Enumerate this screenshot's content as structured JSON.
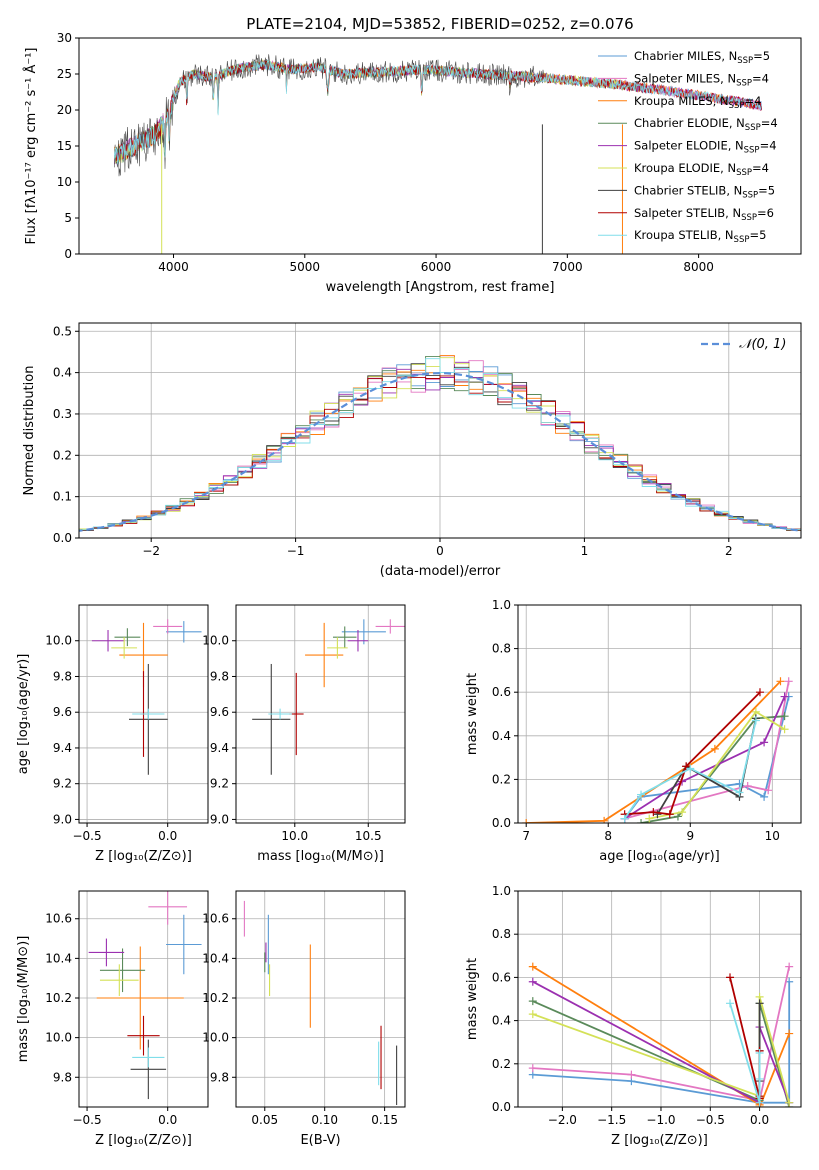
{
  "chart_data": [
    {
      "id": "spectrum",
      "type": "line",
      "title": "PLATE=2104, MJD=53852, FIBERID=0252, z=0.076",
      "xlabel": "wavelength [Angstrom, rest frame]",
      "ylabel": "Flux [fλ10⁻¹⁷ erg cm⁻² s⁻¹ Å⁻¹]",
      "xlim": [
        3280,
        8780
      ],
      "ylim": [
        0,
        30
      ],
      "xticks": [
        4000,
        5000,
        6000,
        7000,
        8000
      ],
      "yticks": [
        0,
        5,
        10,
        15,
        20,
        25,
        30
      ],
      "legend_position": "upper-right",
      "continuum": {
        "x": [
          3550,
          3650,
          3750,
          3850,
          3950,
          4050,
          4150,
          4300,
          4500,
          4700,
          4900,
          5100,
          5300,
          5600,
          5900,
          6200,
          6500,
          6800,
          7100,
          7400,
          7700,
          8000,
          8300,
          8500
        ],
        "y": [
          13.5,
          14.5,
          15.5,
          16.5,
          19.0,
          24.0,
          25.0,
          24.5,
          25.8,
          26.3,
          25.6,
          26.0,
          25.0,
          25.3,
          25.6,
          25.2,
          24.8,
          24.5,
          24.0,
          23.5,
          22.8,
          22.0,
          21.2,
          20.5
        ]
      },
      "series": [
        {
          "name": "Chabrier MILES, N_SSP=5",
          "legend_main": "Chabrier MILES, N",
          "legend_sub": "SSP",
          "legend_tail": "=5",
          "color": "#5b9bd5"
        },
        {
          "name": "Salpeter MILES, N_SSP=4",
          "legend_main": "Salpeter MILES, N",
          "legend_sub": "SSP",
          "legend_tail": "=4",
          "color": "#e377c2"
        },
        {
          "name": "Kroupa MILES, N_SSP=4",
          "legend_main": "Kroupa MILES, N",
          "legend_sub": "SSP",
          "legend_tail": "=4",
          "color": "#ff7f0e"
        },
        {
          "name": "Chabrier ELODIE, N_SSP=4",
          "legend_main": "Chabrier ELODIE, N",
          "legend_sub": "SSP",
          "legend_tail": "=4",
          "color": "#5a8a5a"
        },
        {
          "name": "Salpeter ELODIE, N_SSP=4",
          "legend_main": "Salpeter ELODIE, N",
          "legend_sub": "SSP",
          "legend_tail": "=4",
          "color": "#9b30b0"
        },
        {
          "name": "Kroupa ELODIE, N_SSP=4",
          "legend_main": "Kroupa ELODIE, N",
          "legend_sub": "SSP",
          "legend_tail": "=4",
          "color": "#d4e157"
        },
        {
          "name": "Chabrier STELIB, N_SSP=5",
          "legend_main": "Chabrier STELIB, N",
          "legend_sub": "SSP",
          "legend_tail": "=5",
          "color": "#404040"
        },
        {
          "name": "Salpeter STELIB, N_SSP=6",
          "legend_main": "Salpeter STELIB, N",
          "legend_sub": "SSP",
          "legend_tail": "=6",
          "color": "#b00000"
        },
        {
          "name": "Kroupa STELIB, N_SSP=5",
          "legend_main": "Kroupa STELIB, N",
          "legend_sub": "SSP",
          "legend_tail": "=5",
          "color": "#80deea"
        }
      ]
    },
    {
      "id": "residuals",
      "type": "histogram",
      "xlabel": "(data-model)/error",
      "ylabel": "Normed distribution",
      "xlim": [
        -2.5,
        2.5
      ],
      "ylim": [
        0,
        0.52
      ],
      "xticks": [
        -2,
        -1,
        0,
        1,
        2
      ],
      "yticks": [
        0.0,
        0.1,
        0.2,
        0.3,
        0.4,
        0.5
      ],
      "reference": {
        "name": "N(0,1)",
        "label": "𝒩(0, 1)",
        "mu": 0,
        "sigma": 1,
        "color": "#5b8fd9"
      },
      "bin_width": 0.1,
      "series_colors": [
        "#5b9bd5",
        "#e377c2",
        "#ff7f0e",
        "#5a8a5a",
        "#9b30b0",
        "#d4e157",
        "#404040",
        "#b00000",
        "#80deea"
      ]
    },
    {
      "id": "age_vs_Z",
      "type": "errorbar",
      "xlabel": "Z [log₁₀(Z/Z⊙)]",
      "ylabel": "age  [log₁₀(age/yr)]",
      "xlim": [
        -0.55,
        0.25
      ],
      "ylim": [
        8.98,
        10.2
      ],
      "xticks": [
        -0.5,
        0.0
      ],
      "yticks": [
        9.0,
        9.2,
        9.4,
        9.6,
        9.8,
        10.0
      ],
      "points": [
        {
          "color": "#5b9bd5",
          "x": 0.1,
          "xerr": 0.11,
          "y": 10.05,
          "yerr": 0.06
        },
        {
          "color": "#e377c2",
          "x": 0.0,
          "xerr": 0.09,
          "y": 10.08,
          "yerr": 0.04
        },
        {
          "color": "#ff7f0e",
          "x": -0.15,
          "xerr": 0.15,
          "y": 9.92,
          "yerr": 0.18
        },
        {
          "color": "#5a8a5a",
          "x": -0.25,
          "xerr": 0.08,
          "y": 10.02,
          "yerr": 0.05
        },
        {
          "color": "#9b30b0",
          "x": -0.37,
          "xerr": 0.1,
          "y": 10.0,
          "yerr": 0.06
        },
        {
          "color": "#d4e157",
          "x": -0.27,
          "xerr": 0.08,
          "y": 9.96,
          "yerr": 0.06
        },
        {
          "color": "#404040",
          "x": -0.12,
          "xerr": 0.12,
          "y": 9.56,
          "yerr": 0.31
        },
        {
          "color": "#b00000",
          "x": -0.15,
          "xerr": 0.02,
          "y": 9.59,
          "yerr": 0.24
        },
        {
          "color": "#80deea",
          "x": -0.12,
          "xerr": 0.1,
          "y": 9.59,
          "yerr": 0.03
        }
      ]
    },
    {
      "id": "age_vs_mass",
      "type": "errorbar",
      "xlabel": "mass [log₁₀(M/M⊙)]",
      "xlim": [
        9.6,
        10.75
      ],
      "ylim": [
        8.98,
        10.2
      ],
      "xticks": [
        10.0,
        10.5
      ],
      "yticks": [
        9.0,
        9.2,
        9.4,
        9.6,
        9.8,
        10.0
      ],
      "points": [
        {
          "color": "#5b9bd5",
          "x": 10.47,
          "xerr": 0.15,
          "y": 10.05,
          "yerr": 0.07
        },
        {
          "color": "#e377c2",
          "x": 10.65,
          "xerr": 0.1,
          "y": 10.08,
          "yerr": 0.04
        },
        {
          "color": "#ff7f0e",
          "x": 10.2,
          "xerr": 0.13,
          "y": 9.92,
          "yerr": 0.18
        },
        {
          "color": "#5a8a5a",
          "x": 10.34,
          "xerr": 0.08,
          "y": 10.02,
          "yerr": 0.06
        },
        {
          "color": "#9b30b0",
          "x": 10.43,
          "xerr": 0.07,
          "y": 10.0,
          "yerr": 0.06
        },
        {
          "color": "#d4e157",
          "x": 10.29,
          "xerr": 0.07,
          "y": 9.96,
          "yerr": 0.06
        },
        {
          "color": "#404040",
          "x": 9.84,
          "xerr": 0.13,
          "y": 9.56,
          "yerr": 0.31
        },
        {
          "color": "#b00000",
          "x": 10.01,
          "xerr": 0.05,
          "y": 9.59,
          "yerr": 0.23
        },
        {
          "color": "#80deea",
          "x": 9.9,
          "xerr": 0.08,
          "y": 9.59,
          "yerr": 0.03
        }
      ]
    },
    {
      "id": "mass_weight_vs_age",
      "type": "line",
      "xlabel": "age  [log₁₀(age/yr)]",
      "ylabel": "mass weight",
      "xlim": [
        6.9,
        10.35
      ],
      "ylim": [
        0,
        1.0
      ],
      "xticks": [
        7,
        8,
        9,
        10
      ],
      "yticks": [
        0.0,
        0.2,
        0.4,
        0.6,
        0.8,
        1.0
      ],
      "series": [
        {
          "color": "#5b9bd5",
          "x": [
            8.2,
            8.4,
            9.6,
            9.9,
            10.2
          ],
          "y": [
            0.02,
            0.12,
            0.18,
            0.12,
            0.58
          ]
        },
        {
          "color": "#e377c2",
          "x": [
            8.2,
            9.7,
            9.95,
            10.2
          ],
          "y": [
            0.02,
            0.17,
            0.15,
            0.65
          ]
        },
        {
          "color": "#ff7f0e",
          "x": [
            7.0,
            7.95,
            9.3,
            10.1
          ],
          "y": [
            0.0,
            0.01,
            0.34,
            0.65
          ]
        },
        {
          "color": "#5a8a5a",
          "x": [
            8.4,
            8.85,
            9.8,
            10.15
          ],
          "y": [
            0.0,
            0.03,
            0.48,
            0.49
          ]
        },
        {
          "color": "#9b30b0",
          "x": [
            8.2,
            8.9,
            9.9,
            10.15
          ],
          "y": [
            0.02,
            0.19,
            0.37,
            0.58
          ]
        },
        {
          "color": "#d4e157",
          "x": [
            8.5,
            8.9,
            9.8,
            10.15
          ],
          "y": [
            0.02,
            0.05,
            0.51,
            0.43
          ]
        },
        {
          "color": "#404040",
          "x": [
            8.6,
            8.95,
            9.6,
            9.8
          ],
          "y": [
            0.04,
            0.26,
            0.12,
            0.48
          ]
        },
        {
          "color": "#b00000",
          "x": [
            8.2,
            8.55,
            8.75,
            8.95,
            9.85
          ],
          "y": [
            0.04,
            0.05,
            0.04,
            0.26,
            0.6
          ]
        },
        {
          "color": "#80deea",
          "x": [
            8.2,
            8.4,
            9.0,
            9.6,
            9.8
          ],
          "y": [
            0.02,
            0.13,
            0.25,
            0.14,
            0.47
          ]
        }
      ]
    },
    {
      "id": "mass_vs_Z",
      "type": "errorbar",
      "xlabel": "Z [log₁₀(Z/Z⊙)]",
      "ylabel": "mass [log₁₀(M/M⊙)]",
      "xlim": [
        -0.55,
        0.25
      ],
      "ylim": [
        9.65,
        10.74
      ],
      "xticks": [
        -0.5,
        0.0
      ],
      "yticks": [
        9.8,
        10.0,
        10.2,
        10.4,
        10.6
      ],
      "points": [
        {
          "color": "#5b9bd5",
          "x": 0.1,
          "xerr": 0.11,
          "y": 10.47,
          "yerr": 0.15
        },
        {
          "color": "#e377c2",
          "x": 0.0,
          "xerr": 0.12,
          "y": 10.66,
          "yerr": 0.09
        },
        {
          "color": "#ff7f0e",
          "x": -0.17,
          "xerr": 0.27,
          "y": 10.2,
          "yerr": 0.26
        },
        {
          "color": "#5a8a5a",
          "x": -0.28,
          "xerr": 0.14,
          "y": 10.34,
          "yerr": 0.11
        },
        {
          "color": "#9b30b0",
          "x": -0.38,
          "xerr": 0.11,
          "y": 10.43,
          "yerr": 0.07
        },
        {
          "color": "#d4e157",
          "x": -0.3,
          "xerr": 0.12,
          "y": 10.29,
          "yerr": 0.08
        },
        {
          "color": "#404040",
          "x": -0.12,
          "xerr": 0.11,
          "y": 9.84,
          "yerr": 0.15
        },
        {
          "color": "#b00000",
          "x": -0.15,
          "xerr": 0.1,
          "y": 10.01,
          "yerr": 0.1
        },
        {
          "color": "#80deea",
          "x": -0.12,
          "xerr": 0.1,
          "y": 9.9,
          "yerr": 0.05
        }
      ]
    },
    {
      "id": "mass_vs_ebv",
      "type": "errorbar",
      "xlabel": "E(B-V)",
      "xlim": [
        0.026,
        0.167
      ],
      "ylim": [
        9.65,
        10.74
      ],
      "xticks": [
        0.05,
        0.1,
        0.15
      ],
      "yticks": [
        9.8,
        10.0,
        10.2,
        10.4,
        10.6
      ],
      "points": [
        {
          "color": "#5b9bd5",
          "x": 0.053,
          "xerr": 0,
          "y": 10.47,
          "yerr": 0.15
        },
        {
          "color": "#e377c2",
          "x": 0.033,
          "xerr": 0,
          "y": 10.6,
          "yerr": 0.09
        },
        {
          "color": "#ff7f0e",
          "x": 0.088,
          "xerr": 0,
          "y": 10.26,
          "yerr": 0.21
        },
        {
          "color": "#5a8a5a",
          "x": 0.05,
          "xerr": 0,
          "y": 10.38,
          "yerr": 0.05
        },
        {
          "color": "#9b30b0",
          "x": 0.051,
          "xerr": 0,
          "y": 10.43,
          "yerr": 0.05
        },
        {
          "color": "#d4e157",
          "x": 0.054,
          "xerr": 0,
          "y": 10.29,
          "yerr": 0.08
        },
        {
          "color": "#404040",
          "x": 0.16,
          "xerr": 0,
          "y": 9.81,
          "yerr": 0.15
        },
        {
          "color": "#b00000",
          "x": 0.147,
          "xerr": 0,
          "y": 9.9,
          "yerr": 0.16
        },
        {
          "color": "#80deea",
          "x": 0.145,
          "xerr": 0,
          "y": 9.87,
          "yerr": 0.11
        }
      ]
    },
    {
      "id": "mass_weight_vs_Z",
      "type": "line",
      "xlabel": "Z [log₁₀(Z/Z⊙)]",
      "ylabel": "mass weight",
      "xlim": [
        -2.45,
        0.42
      ],
      "ylim": [
        0,
        1.0
      ],
      "xticks": [
        -2.0,
        -1.5,
        -1.0,
        -0.5,
        0.0
      ],
      "yticks": [
        0.0,
        0.2,
        0.4,
        0.6,
        0.8,
        1.0
      ],
      "series": [
        {
          "color": "#5b9bd5",
          "x": [
            -2.3,
            -1.3,
            0.0,
            0.3,
            0.3
          ],
          "y": [
            0.15,
            0.12,
            0.02,
            0.02,
            0.58
          ]
        },
        {
          "color": "#e377c2",
          "x": [
            -2.3,
            -1.3,
            0.0,
            0.3
          ],
          "y": [
            0.18,
            0.15,
            0.03,
            0.65
          ]
        },
        {
          "color": "#ff7f0e",
          "x": [
            -2.3,
            0.0,
            0.0,
            0.3
          ],
          "y": [
            0.65,
            0.01,
            0.0,
            0.34
          ]
        },
        {
          "color": "#5a8a5a",
          "x": [
            -2.3,
            0.0,
            0.0,
            0.3
          ],
          "y": [
            0.49,
            0.03,
            0.48,
            0.0
          ]
        },
        {
          "color": "#9b30b0",
          "x": [
            -2.3,
            0.0,
            0.0,
            0.3
          ],
          "y": [
            0.58,
            0.02,
            0.37,
            0.02
          ]
        },
        {
          "color": "#d4e157",
          "x": [
            -2.3,
            0.0,
            0.0,
            0.3
          ],
          "y": [
            0.43,
            0.05,
            0.51,
            0.02
          ]
        },
        {
          "color": "#404040",
          "x": [
            0.0,
            0.0,
            0.0,
            0.0
          ],
          "y": [
            0.04,
            0.26,
            0.12,
            0.48
          ]
        },
        {
          "color": "#b00000",
          "x": [
            -0.3,
            0.0,
            0.0,
            0.0
          ],
          "y": [
            0.6,
            0.04,
            0.05,
            0.26
          ]
        },
        {
          "color": "#80deea",
          "x": [
            -0.3,
            0.0,
            0.0,
            0.0
          ],
          "y": [
            0.48,
            0.02,
            0.13,
            0.25
          ]
        }
      ]
    }
  ]
}
